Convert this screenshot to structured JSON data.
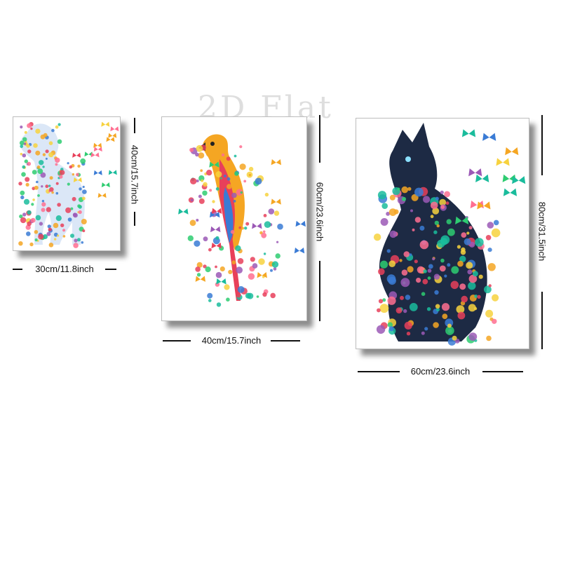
{
  "watermark": "2D Flat",
  "panels": [
    {
      "subject": "floral dog silhouette",
      "width_label": "30cm/11.8inch",
      "height_label": "40cm/15.7inch"
    },
    {
      "subject": "floral parrot",
      "width_label": "40cm/15.7inch",
      "height_label": "60cm/23.6inch"
    },
    {
      "subject": "floral cat silhouette",
      "width_label": "60cm/23.6inch",
      "height_label": "80cm/31.5inch"
    }
  ],
  "colors": {
    "background": "#ffffff",
    "dimension_line": "#111111",
    "flower_palette": [
      "#e8405a",
      "#f5a623",
      "#f7d23e",
      "#3a7bd5",
      "#9b59b6",
      "#2ecc71",
      "#ff6f91",
      "#1abc9c"
    ]
  }
}
